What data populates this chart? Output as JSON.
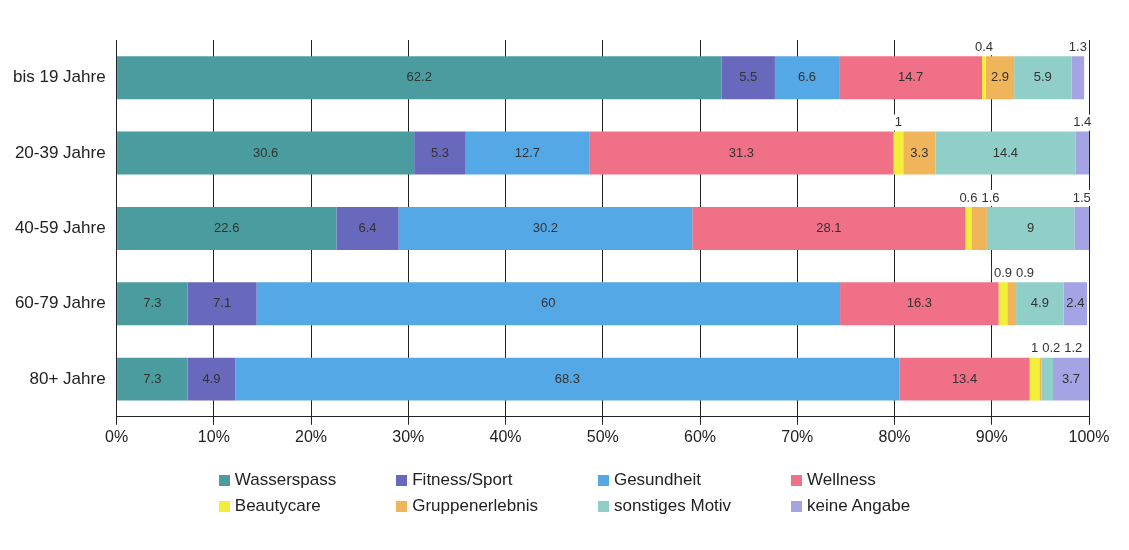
{
  "chart_data": {
    "type": "bar",
    "orientation": "horizontal",
    "stacked": true,
    "categories": [
      "bis 19 Jahre",
      "20-39 Jahre",
      "40-59 Jahre",
      "60-79 Jahre",
      "80+ Jahre"
    ],
    "series": [
      {
        "name": "Wasserspass",
        "color": "#4a9c9e",
        "values": [
          62.2,
          30.6,
          22.6,
          7.3,
          7.3
        ]
      },
      {
        "name": "Fitness/Sport",
        "color": "#6868bc",
        "values": [
          5.5,
          5.3,
          6.4,
          7.1,
          4.9
        ]
      },
      {
        "name": "Gesundheit",
        "color": "#55a8e6",
        "values": [
          6.6,
          12.7,
          30.2,
          60,
          68.3
        ]
      },
      {
        "name": "Wellness",
        "color": "#f07088",
        "values": [
          14.7,
          31.3,
          28.1,
          16.3,
          13.4
        ]
      },
      {
        "name": "Beautycare",
        "color": "#f2ee3a",
        "values": [
          0.4,
          1,
          0.6,
          0.9,
          1
        ]
      },
      {
        "name": "Gruppenerlebnis",
        "color": "#f0b45a",
        "values": [
          2.9,
          3.3,
          1.6,
          0.9,
          0.2
        ]
      },
      {
        "name": "sonstiges Motiv",
        "color": "#90cfc8",
        "values": [
          5.9,
          14.4,
          9,
          4.9,
          1.2
        ]
      },
      {
        "name": "keine Angabe",
        "color": "#a4a4e4",
        "values": [
          1.3,
          1.4,
          1.5,
          2.4,
          3.7
        ]
      }
    ],
    "xlim": [
      0,
      100
    ],
    "xticks": [
      {
        "value": 0,
        "label": "0%"
      },
      {
        "value": 10,
        "label": "10%"
      },
      {
        "value": 20,
        "label": "20%"
      },
      {
        "value": 30,
        "label": "30%"
      },
      {
        "value": 40,
        "label": "40%"
      },
      {
        "value": 50,
        "label": "50%"
      },
      {
        "value": 60,
        "label": "60%"
      },
      {
        "value": 70,
        "label": "70%"
      },
      {
        "value": 80,
        "label": "80%"
      },
      {
        "value": 90,
        "label": "90%"
      },
      {
        "value": 100,
        "label": "100%"
      }
    ],
    "grid": "x",
    "legend": "bottom",
    "data_labels": true
  }
}
